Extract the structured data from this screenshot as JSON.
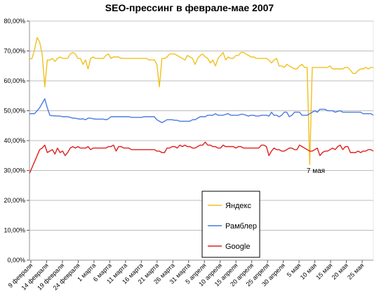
{
  "chart_data": {
    "type": "line",
    "title": "SEO-прессинг в феврале-мае 2007",
    "xlabel": "",
    "ylabel": "",
    "ylim": [
      0,
      80
    ],
    "y_ticks": [
      "0,00%",
      "10,00%",
      "20,00%",
      "30,00%",
      "40,00%",
      "50,00%",
      "60,00%",
      "70,00%",
      "80,00%"
    ],
    "grid": "horizontal",
    "legend_position": "bottom-center",
    "x_labels": [
      "9 февраля",
      "14 февраля",
      "19 февраля",
      "24 февраля",
      "1 марта",
      "6 марта",
      "11 марта",
      "16 марта",
      "21 марта",
      "26 марта",
      "31 марта",
      "5 апреля",
      "10 апреля",
      "15 апреля",
      "20 апреля",
      "25 апреля",
      "30 апреля",
      "5 мая",
      "10 мая",
      "15 мая",
      "20 мая",
      "25 мая"
    ],
    "annotation": "7 мая",
    "series": [
      {
        "name": "Яндекс",
        "color": "#f0c020",
        "values": [
          67.3,
          67.5,
          70.5,
          74.5,
          73.0,
          69.0,
          58.0,
          67.0,
          67.0,
          67.5,
          66.5,
          67.5,
          68.0,
          67.5,
          67.5,
          67.5,
          69.0,
          69.5,
          69.0,
          67.5,
          67.5,
          65.5,
          67.0,
          64.0,
          67.5,
          68.0,
          67.5,
          67.5,
          67.5,
          67.5,
          68.5,
          69.0,
          67.5,
          68.0,
          68.0,
          68.0,
          67.5,
          67.5,
          67.5,
          67.5,
          67.5,
          67.5,
          67.5,
          67.5,
          67.5,
          67.5,
          67.5,
          67.0,
          67.0,
          67.0,
          65.5,
          58.0,
          67.5,
          67.5,
          68.0,
          69.0,
          69.0,
          69.0,
          68.5,
          68.0,
          67.5,
          67.0,
          68.5,
          68.0,
          67.5,
          65.5,
          67.5,
          68.5,
          69.0,
          68.0,
          67.5,
          66.0,
          67.0,
          65.0,
          67.5,
          68.5,
          69.5,
          67.0,
          68.0,
          67.5,
          67.5,
          68.5,
          68.5,
          69.5,
          69.5,
          69.0,
          68.5,
          68.0,
          68.0,
          67.5,
          67.5,
          67.5,
          67.5,
          67.5,
          67.0,
          66.0,
          67.0,
          67.5,
          65.0,
          65.0,
          64.5,
          65.5,
          65.0,
          64.5,
          64.0,
          64.0,
          65.0,
          65.5,
          64.5,
          64.5,
          32.0,
          64.5,
          64.5,
          64.5,
          64.5,
          64.5,
          64.5,
          64.5,
          65.0,
          64.0,
          64.0,
          64.0,
          64.0,
          64.0,
          64.5,
          64.5,
          63.5,
          62.5,
          62.5,
          63.5,
          64.0,
          64.0,
          64.5,
          64.0,
          64.5,
          64.5
        ]
      },
      {
        "name": "Рамблер",
        "color": "#4a7ae0",
        "values": [
          49.0,
          49.0,
          49.0,
          50.0,
          51.0,
          52.5,
          54.0,
          51.0,
          48.5,
          48.3,
          48.3,
          48.2,
          48.2,
          48.0,
          48.0,
          48.0,
          47.8,
          47.5,
          47.5,
          47.3,
          47.2,
          47.3,
          47.0,
          47.5,
          47.5,
          47.3,
          47.2,
          47.2,
          47.2,
          47.2,
          47.0,
          47.3,
          48.0,
          48.0,
          48.0,
          48.0,
          48.0,
          48.0,
          48.0,
          48.0,
          47.8,
          47.8,
          47.8,
          47.8,
          47.8,
          48.0,
          48.0,
          48.0,
          48.0,
          48.0,
          47.0,
          46.5,
          46.0,
          46.5,
          47.0,
          47.0,
          47.0,
          46.8,
          46.8,
          46.5,
          46.5,
          46.5,
          46.5,
          46.5,
          47.0,
          47.0,
          47.5,
          48.0,
          48.0,
          48.0,
          48.5,
          48.5,
          48.5,
          49.0,
          48.5,
          48.5,
          48.5,
          48.8,
          49.0,
          48.5,
          48.5,
          48.5,
          48.5,
          48.8,
          48.8,
          48.5,
          48.2,
          48.5,
          48.5,
          48.2,
          48.2,
          48.5,
          48.5,
          48.5,
          48.2,
          49.5,
          48.5,
          48.5,
          48.0,
          48.5,
          49.5,
          49.5,
          48.0,
          48.5,
          49.5,
          49.5,
          49.5,
          48.5,
          48.5,
          48.5,
          49.0,
          49.5,
          50.0,
          49.5,
          50.5,
          50.5,
          50.5,
          50.0,
          50.0,
          50.0,
          49.5,
          49.8,
          50.0,
          49.5,
          49.5,
          49.5,
          49.5,
          49.5,
          49.5,
          49.5,
          49.5,
          49.0,
          49.0,
          49.0,
          49.0,
          48.5
        ]
      },
      {
        "name": "Google",
        "color": "#e02020",
        "values": [
          29.0,
          31.0,
          33.0,
          35.0,
          37.0,
          37.5,
          38.5,
          36.0,
          36.5,
          37.0,
          35.5,
          37.5,
          36.0,
          36.5,
          35.0,
          36.0,
          37.5,
          38.0,
          37.5,
          38.0,
          37.5,
          37.5,
          37.5,
          38.0,
          37.0,
          37.5,
          37.5,
          37.5,
          37.5,
          37.5,
          37.5,
          38.0,
          38.0,
          38.5,
          36.5,
          38.0,
          38.0,
          37.5,
          37.5,
          37.5,
          37.0,
          37.0,
          37.0,
          37.0,
          37.0,
          37.0,
          37.0,
          37.0,
          37.0,
          37.0,
          36.5,
          36.5,
          36.0,
          36.0,
          37.5,
          37.5,
          38.0,
          38.0,
          37.5,
          38.5,
          38.0,
          38.5,
          38.0,
          38.0,
          37.5,
          37.5,
          38.0,
          38.5,
          38.5,
          39.5,
          38.5,
          38.5,
          38.0,
          38.0,
          37.5,
          37.5,
          38.5,
          38.0,
          38.0,
          38.0,
          38.0,
          37.5,
          38.0,
          38.0,
          37.5,
          37.5,
          37.5,
          37.5,
          37.5,
          37.5,
          37.5,
          38.5,
          38.5,
          38.0,
          35.0,
          36.5,
          37.5,
          37.0,
          37.0,
          36.5,
          36.5,
          37.0,
          37.5,
          37.5,
          37.0,
          37.0,
          38.5,
          38.0,
          37.5,
          37.0,
          36.5,
          36.5,
          37.0,
          37.5,
          35.0,
          36.0,
          36.5,
          36.5,
          37.0,
          37.5,
          37.0,
          38.0,
          38.5,
          37.0,
          38.0,
          38.0,
          36.0,
          36.0,
          36.0,
          36.5,
          36.0,
          36.5,
          36.5,
          37.0,
          37.0,
          36.5
        ]
      }
    ]
  }
}
